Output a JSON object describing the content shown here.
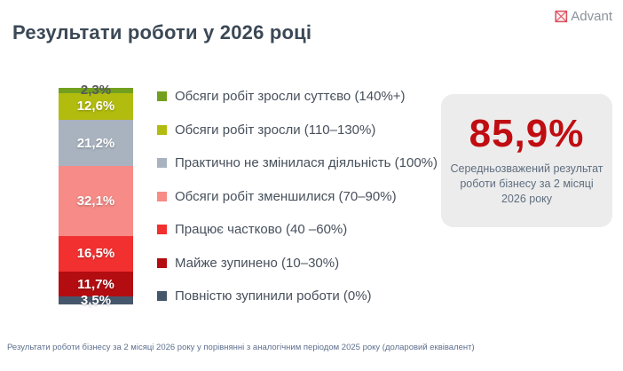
{
  "header": {
    "title": "Результати роботи у 2026 році",
    "logo": {
      "text": "Advant",
      "icon": "crossed-box-icon",
      "icon_color": "#d94f5c",
      "text_color": "#8a929b"
    }
  },
  "chart_data": {
    "type": "bar",
    "variant": "single-stacked-column",
    "orientation": "vertical",
    "unit": "%",
    "total": 100,
    "legend_position": "right-of-bar",
    "segments": [
      {
        "label": "Обсяги робіт зросли суттєво (140%+)",
        "value": 2.3,
        "display": "2,3%",
        "color": "#72a01e",
        "label_color": "#595959"
      },
      {
        "label": "Обсяги робіт зросли (110–130%)",
        "value": 12.6,
        "display": "12,6%",
        "color": "#b2bc0e",
        "label_color": "#ffffff"
      },
      {
        "label": "Практично не змінилася діяльність (100%)",
        "value": 21.2,
        "display": "21,2%",
        "color": "#a9b3c0",
        "label_color": "#ffffff"
      },
      {
        "label": "Обсяги робіт зменшилися (70–90%)",
        "value": 32.1,
        "display": "32,1%",
        "color": "#f68b87",
        "label_color": "#ffffff"
      },
      {
        "label": "Працює частково (40 –60%)",
        "value": 16.5,
        "display": "16,5%",
        "color": "#f23030",
        "label_color": "#ffffff"
      },
      {
        "label": "Майже зупинено (10–30%)",
        "value": 11.7,
        "display": "11,7%",
        "color": "#b30d11",
        "label_color": "#ffffff"
      },
      {
        "label": "Повністю зупинили роботи (0%)",
        "value": 3.5,
        "display": "3,5%",
        "color": "#46576c",
        "label_color": "#ffffff"
      }
    ]
  },
  "summary_card": {
    "value": "85,9%",
    "description": "Середньозважений результат роботи бізнесу за 2 місяці 2026 року",
    "value_color": "#c00d12",
    "background": "#ececec"
  },
  "footer": {
    "note": "Результати роботи бізнесу за 2 місяці 2026 року у порівнянні з аналогічним періодом 2025 року (доларовий еквівалент)"
  },
  "colors": {
    "title": "#3b4856",
    "legend_text": "#47505c",
    "footer_text": "#5d6f8e",
    "accent_red": "#c00d12"
  }
}
